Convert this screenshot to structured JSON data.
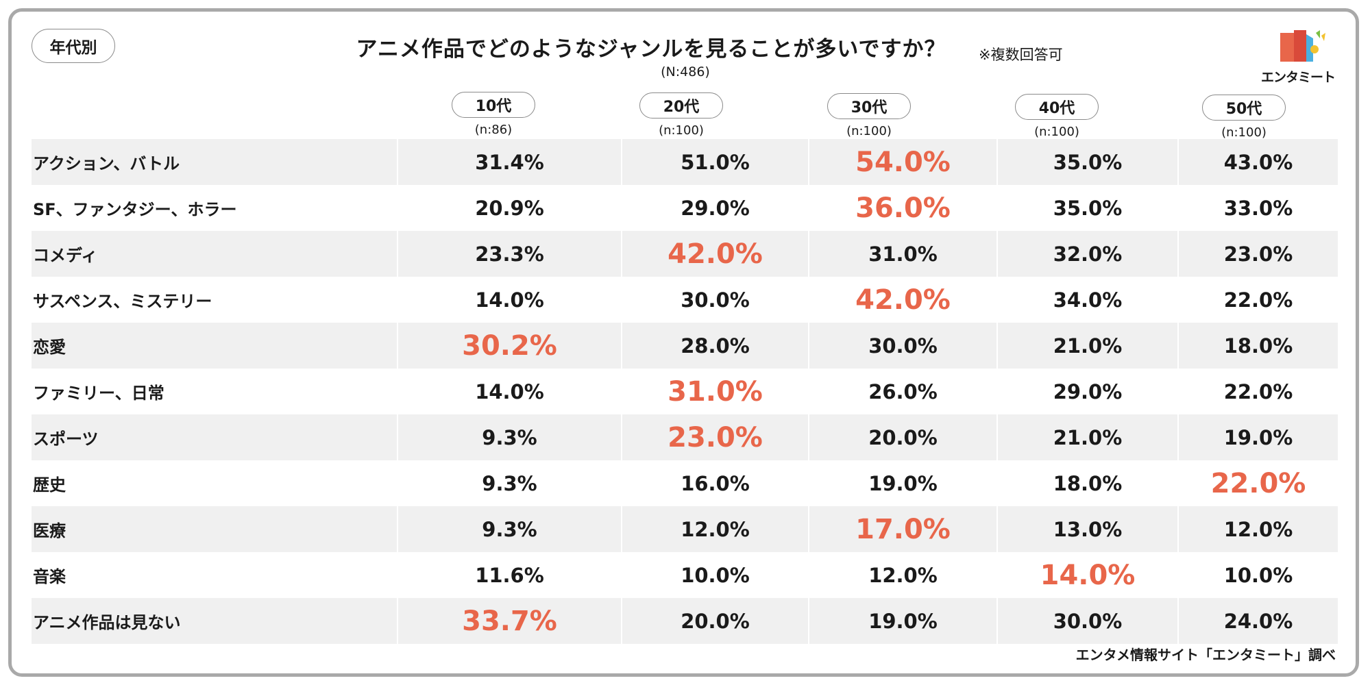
{
  "badge": "年代別",
  "title": "アニメ作品でどのようなジャンルを見ることが多いですか？",
  "note": "※複数回答可",
  "total": "(N:486)",
  "logo_text": "エンタミート",
  "footer": "エンタメ情報サイト「エンタミート」調べ",
  "colors": {
    "highlight": "#e8664a",
    "row_shade": "#f0f0f0",
    "text": "#1a1a1a"
  },
  "chart_data": {
    "type": "table",
    "columns": [
      {
        "label": "10代",
        "n": "(n:86)"
      },
      {
        "label": "20代",
        "n": "(n:100)"
      },
      {
        "label": "30代",
        "n": "(n:100)"
      },
      {
        "label": "40代",
        "n": "(n:100)"
      },
      {
        "label": "50代",
        "n": "(n:100)"
      }
    ],
    "rows": [
      {
        "label": "アクション、バトル",
        "values": [
          "31.4%",
          "51.0%",
          "54.0%",
          "35.0%",
          "43.0%"
        ],
        "highlight": 2
      },
      {
        "label": "SF、ファンタジー、ホラー",
        "values": [
          "20.9%",
          "29.0%",
          "36.0%",
          "35.0%",
          "33.0%"
        ],
        "highlight": 2
      },
      {
        "label": "コメディ",
        "values": [
          "23.3%",
          "42.0%",
          "31.0%",
          "32.0%",
          "23.0%"
        ],
        "highlight": 1
      },
      {
        "label": "サスペンス、ミステリー",
        "values": [
          "14.0%",
          "30.0%",
          "42.0%",
          "34.0%",
          "22.0%"
        ],
        "highlight": 2
      },
      {
        "label": "恋愛",
        "values": [
          "30.2%",
          "28.0%",
          "30.0%",
          "21.0%",
          "18.0%"
        ],
        "highlight": 0
      },
      {
        "label": "ファミリー、日常",
        "values": [
          "14.0%",
          "31.0%",
          "26.0%",
          "29.0%",
          "22.0%"
        ],
        "highlight": 1
      },
      {
        "label": "スポーツ",
        "values": [
          "9.3%",
          "23.0%",
          "20.0%",
          "21.0%",
          "19.0%"
        ],
        "highlight": 1
      },
      {
        "label": "歴史",
        "values": [
          "9.3%",
          "16.0%",
          "19.0%",
          "18.0%",
          "22.0%"
        ],
        "highlight": 4
      },
      {
        "label": "医療",
        "values": [
          "9.3%",
          "12.0%",
          "17.0%",
          "13.0%",
          "12.0%"
        ],
        "highlight": 2
      },
      {
        "label": "音楽",
        "values": [
          "11.6%",
          "10.0%",
          "12.0%",
          "14.0%",
          "10.0%"
        ],
        "highlight": 3
      },
      {
        "label": "アニメ作品は見ない",
        "values": [
          "33.7%",
          "20.0%",
          "19.0%",
          "30.0%",
          "24.0%"
        ],
        "highlight": 0
      }
    ]
  }
}
